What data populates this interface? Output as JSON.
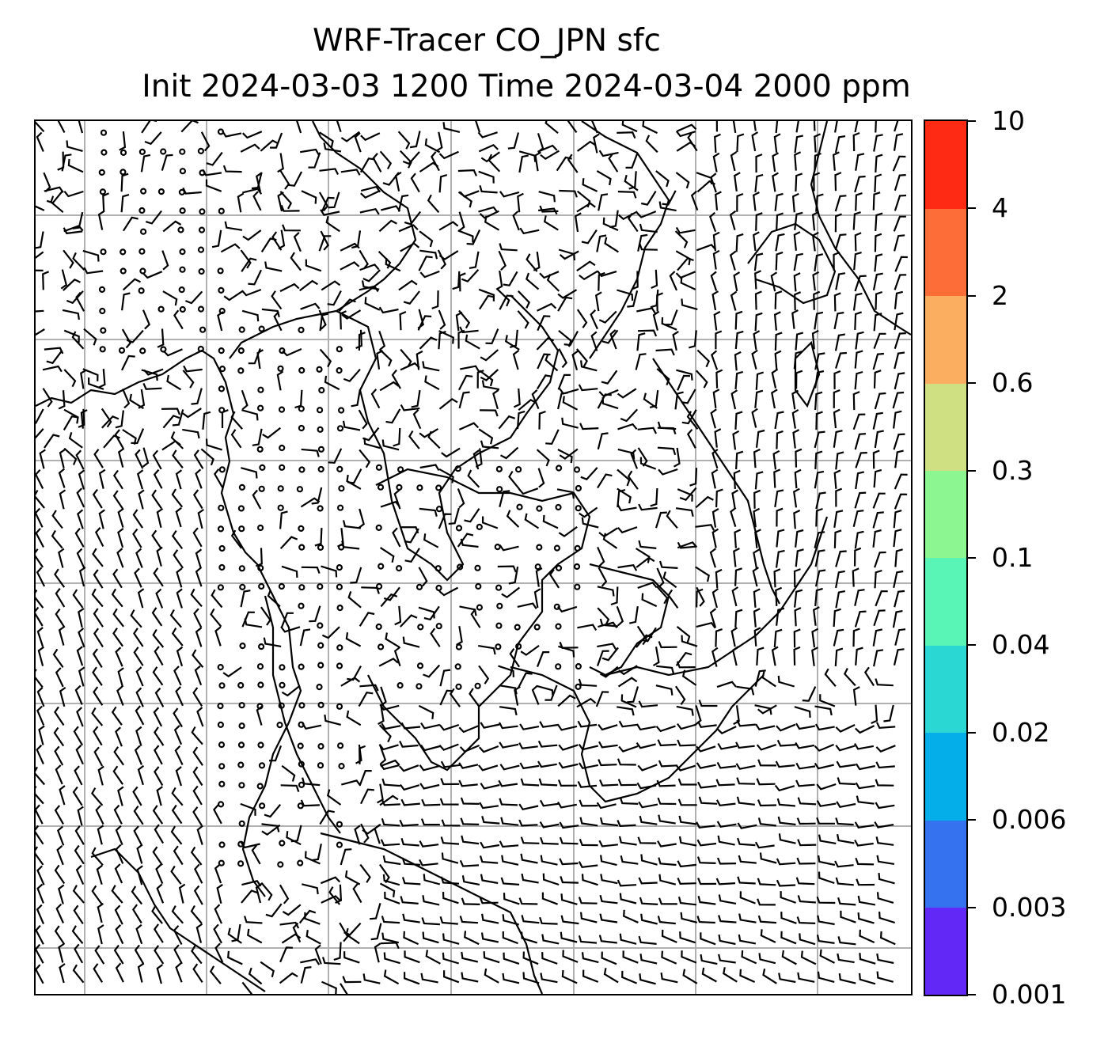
{
  "title": {
    "line1": "WRF-Tracer CO_JPN sfc",
    "line2": "Init 2024-03-03 1200 Time 2024-03-04 2000 ppm"
  },
  "map": {
    "projection_grid": "lat-lon gridlines every 10 degrees",
    "gridline_color": "#b0b0b0",
    "barb_color": "#000000",
    "coastline_color": "#000000",
    "field_shading": "none visible (all values below 0.001)"
  },
  "colorbar": {
    "levels": [
      "0.001",
      "0.003",
      "0.006",
      "0.02",
      "0.04",
      "0.1",
      "0.3",
      "0.6",
      "2",
      "4",
      "10"
    ],
    "colors": [
      "#6228f5",
      "#3572f0",
      "#03aee9",
      "#2ad7d3",
      "#58f5b6",
      "#8cf690",
      "#cee082",
      "#fbae60",
      "#fd6d38",
      "#ff2a13"
    ]
  }
}
